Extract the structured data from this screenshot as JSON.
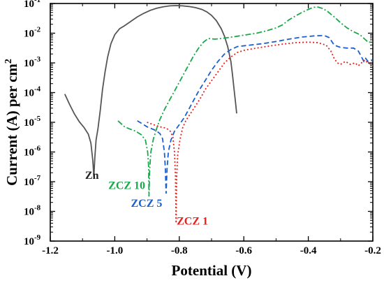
{
  "chart_data": {
    "type": "line",
    "xlabel": "Potential (V)",
    "ylabel_main": "Current (A) per cm",
    "ylabel_sup": "2",
    "xlim": [
      -1.2,
      -0.2
    ],
    "ylim_log10": [
      -9,
      -1
    ],
    "y_scale": "log",
    "x_ticks": [
      {
        "value": -1.2,
        "label": "-1.2"
      },
      {
        "value": -1.0,
        "label": "-1.0"
      },
      {
        "value": -0.8,
        "label": "-0.8"
      },
      {
        "value": -0.6,
        "label": "-0.6"
      },
      {
        "value": -0.4,
        "label": "-0.4"
      },
      {
        "value": -0.2,
        "label": "-0.2"
      }
    ],
    "y_ticks": [
      {
        "exp": -9,
        "base": "10",
        "sup": "-9"
      },
      {
        "exp": -8,
        "base": "10",
        "sup": "-8"
      },
      {
        "exp": -7,
        "base": "10",
        "sup": "-7"
      },
      {
        "exp": -6,
        "base": "10",
        "sup": "-6"
      },
      {
        "exp": -5,
        "base": "10",
        "sup": "-5"
      },
      {
        "exp": -4,
        "base": "10",
        "sup": "-4"
      },
      {
        "exp": -3,
        "base": "10",
        "sup": "-3"
      },
      {
        "exp": -2,
        "base": "10",
        "sup": "-2"
      },
      {
        "exp": -1,
        "base": "10",
        "sup": "-1"
      }
    ],
    "series": [
      {
        "name": "Zn",
        "color": "#555555",
        "dash": "solid",
        "label_anchor": [
          -1.092,
          -6.9
        ],
        "points": [
          [
            -1.155,
            -4.05
          ],
          [
            -1.14,
            -4.4
          ],
          [
            -1.125,
            -4.72
          ],
          [
            -1.11,
            -4.98
          ],
          [
            -1.095,
            -5.18
          ],
          [
            -1.082,
            -5.4
          ],
          [
            -1.074,
            -5.7
          ],
          [
            -1.068,
            -6.3
          ],
          [
            -1.065,
            -6.85
          ],
          [
            -1.062,
            -6.2
          ],
          [
            -1.058,
            -5.6
          ],
          [
            -1.052,
            -5.2
          ],
          [
            -1.045,
            -4.6
          ],
          [
            -1.038,
            -3.9
          ],
          [
            -1.03,
            -3.3
          ],
          [
            -1.022,
            -2.8
          ],
          [
            -1.012,
            -2.35
          ],
          [
            -1.0,
            -2.05
          ],
          [
            -0.985,
            -1.85
          ],
          [
            -0.97,
            -1.75
          ],
          [
            -0.95,
            -1.6
          ],
          [
            -0.93,
            -1.45
          ],
          [
            -0.91,
            -1.33
          ],
          [
            -0.89,
            -1.23
          ],
          [
            -0.87,
            -1.16
          ],
          [
            -0.85,
            -1.11
          ],
          [
            -0.83,
            -1.08
          ],
          [
            -0.81,
            -1.07
          ],
          [
            -0.79,
            -1.08
          ],
          [
            -0.77,
            -1.1
          ],
          [
            -0.75,
            -1.14
          ],
          [
            -0.73,
            -1.2
          ],
          [
            -0.715,
            -1.28
          ],
          [
            -0.7,
            -1.4
          ],
          [
            -0.685,
            -1.58
          ],
          [
            -0.67,
            -1.85
          ],
          [
            -0.66,
            -2.1
          ],
          [
            -0.65,
            -2.45
          ],
          [
            -0.64,
            -2.95
          ],
          [
            -0.635,
            -3.4
          ],
          [
            -0.63,
            -3.9
          ],
          [
            -0.626,
            -4.3
          ],
          [
            -0.622,
            -4.7
          ]
        ]
      },
      {
        "name": "ZCZ 10",
        "color": "#19a84a",
        "dash": "8,3,2,3",
        "label_anchor": [
          -1.02,
          -7.25
        ],
        "points": [
          [
            -0.99,
            -4.95
          ],
          [
            -0.98,
            -5.05
          ],
          [
            -0.97,
            -5.15
          ],
          [
            -0.955,
            -5.22
          ],
          [
            -0.935,
            -5.3
          ],
          [
            -0.918,
            -5.42
          ],
          [
            -0.905,
            -5.6
          ],
          [
            -0.898,
            -6.0
          ],
          [
            -0.895,
            -6.5
          ],
          [
            -0.894,
            -7.5
          ],
          [
            -0.892,
            -6.6
          ],
          [
            -0.888,
            -6.0
          ],
          [
            -0.88,
            -5.55
          ],
          [
            -0.87,
            -5.2
          ],
          [
            -0.86,
            -4.9
          ],
          [
            -0.845,
            -4.55
          ],
          [
            -0.83,
            -4.25
          ],
          [
            -0.815,
            -3.95
          ],
          [
            -0.8,
            -3.65
          ],
          [
            -0.785,
            -3.35
          ],
          [
            -0.77,
            -3.05
          ],
          [
            -0.755,
            -2.75
          ],
          [
            -0.74,
            -2.5
          ],
          [
            -0.725,
            -2.3
          ],
          [
            -0.71,
            -2.18
          ],
          [
            -0.69,
            -2.2
          ],
          [
            -0.67,
            -2.18
          ],
          [
            -0.65,
            -2.15
          ],
          [
            -0.62,
            -2.1
          ],
          [
            -0.59,
            -2.05
          ],
          [
            -0.56,
            -2.0
          ],
          [
            -0.53,
            -1.92
          ],
          [
            -0.5,
            -1.82
          ],
          [
            -0.48,
            -1.72
          ],
          [
            -0.46,
            -1.55
          ],
          [
            -0.44,
            -1.42
          ],
          [
            -0.42,
            -1.3
          ],
          [
            -0.4,
            -1.2
          ],
          [
            -0.385,
            -1.13
          ],
          [
            -0.37,
            -1.12
          ],
          [
            -0.355,
            -1.17
          ],
          [
            -0.34,
            -1.27
          ],
          [
            -0.32,
            -1.45
          ],
          [
            -0.3,
            -1.65
          ],
          [
            -0.28,
            -1.82
          ],
          [
            -0.26,
            -1.95
          ],
          [
            -0.24,
            -2.05
          ],
          [
            -0.225,
            -2.2
          ],
          [
            -0.215,
            -2.3
          ],
          [
            -0.2,
            -2.3
          ]
        ]
      },
      {
        "name": "ZCZ 5",
        "color": "#1a5fd0",
        "dash": "7,4",
        "label_anchor": [
          -0.95,
          -7.85
        ],
        "points": [
          [
            -0.93,
            -4.95
          ],
          [
            -0.915,
            -5.05
          ],
          [
            -0.9,
            -5.15
          ],
          [
            -0.885,
            -5.22
          ],
          [
            -0.872,
            -5.28
          ],
          [
            -0.86,
            -5.38
          ],
          [
            -0.852,
            -5.55
          ],
          [
            -0.846,
            -6.0
          ],
          [
            -0.843,
            -6.6
          ],
          [
            -0.841,
            -7.4
          ],
          [
            -0.838,
            -6.6
          ],
          [
            -0.834,
            -6.0
          ],
          [
            -0.826,
            -5.6
          ],
          [
            -0.815,
            -5.3
          ],
          [
            -0.8,
            -5.08
          ],
          [
            -0.785,
            -4.85
          ],
          [
            -0.77,
            -4.55
          ],
          [
            -0.755,
            -4.25
          ],
          [
            -0.74,
            -3.95
          ],
          [
            -0.72,
            -3.6
          ],
          [
            -0.7,
            -3.25
          ],
          [
            -0.68,
            -2.95
          ],
          [
            -0.66,
            -2.7
          ],
          [
            -0.64,
            -2.55
          ],
          [
            -0.62,
            -2.45
          ],
          [
            -0.58,
            -2.4
          ],
          [
            -0.54,
            -2.35
          ],
          [
            -0.5,
            -2.28
          ],
          [
            -0.46,
            -2.2
          ],
          [
            -0.42,
            -2.13
          ],
          [
            -0.38,
            -2.09
          ],
          [
            -0.35,
            -2.08
          ],
          [
            -0.335,
            -2.15
          ],
          [
            -0.32,
            -2.4
          ],
          [
            -0.3,
            -2.48
          ],
          [
            -0.28,
            -2.5
          ],
          [
            -0.26,
            -2.5
          ],
          [
            -0.245,
            -2.6
          ],
          [
            -0.235,
            -2.8
          ],
          [
            -0.228,
            -2.95
          ],
          [
            -0.222,
            -2.85
          ],
          [
            -0.215,
            -2.95
          ],
          [
            -0.205,
            -2.9
          ],
          [
            -0.2,
            -2.95
          ]
        ]
      },
      {
        "name": "ZCZ 1",
        "color": "#e8201c",
        "dash": "2,3",
        "label_anchor": [
          -0.808,
          -8.45
        ],
        "points": [
          [
            -0.9,
            -5.0
          ],
          [
            -0.88,
            -5.08
          ],
          [
            -0.86,
            -5.15
          ],
          [
            -0.84,
            -5.2
          ],
          [
            -0.828,
            -5.3
          ],
          [
            -0.82,
            -5.5
          ],
          [
            -0.815,
            -6.0
          ],
          [
            -0.812,
            -6.8
          ],
          [
            -0.81,
            -8.4
          ],
          [
            -0.808,
            -6.8
          ],
          [
            -0.805,
            -6.1
          ],
          [
            -0.798,
            -5.6
          ],
          [
            -0.79,
            -5.2
          ],
          [
            -0.78,
            -4.95
          ],
          [
            -0.765,
            -4.7
          ],
          [
            -0.75,
            -4.45
          ],
          [
            -0.735,
            -4.2
          ],
          [
            -0.72,
            -3.9
          ],
          [
            -0.7,
            -3.6
          ],
          [
            -0.68,
            -3.3
          ],
          [
            -0.66,
            -3.0
          ],
          [
            -0.64,
            -2.8
          ],
          [
            -0.62,
            -2.65
          ],
          [
            -0.6,
            -2.58
          ],
          [
            -0.56,
            -2.5
          ],
          [
            -0.52,
            -2.43
          ],
          [
            -0.48,
            -2.37
          ],
          [
            -0.44,
            -2.32
          ],
          [
            -0.4,
            -2.3
          ],
          [
            -0.37,
            -2.32
          ],
          [
            -0.345,
            -2.4
          ],
          [
            -0.33,
            -2.6
          ],
          [
            -0.32,
            -2.85
          ],
          [
            -0.31,
            -3.0
          ],
          [
            -0.3,
            -3.05
          ],
          [
            -0.285,
            -2.95
          ],
          [
            -0.27,
            -3.05
          ],
          [
            -0.255,
            -3.0
          ],
          [
            -0.245,
            -3.1
          ],
          [
            -0.235,
            -3.0
          ],
          [
            -0.225,
            -2.9
          ],
          [
            -0.215,
            -3.0
          ],
          [
            -0.205,
            -3.05
          ],
          [
            -0.2,
            -3.1
          ]
        ]
      }
    ]
  }
}
